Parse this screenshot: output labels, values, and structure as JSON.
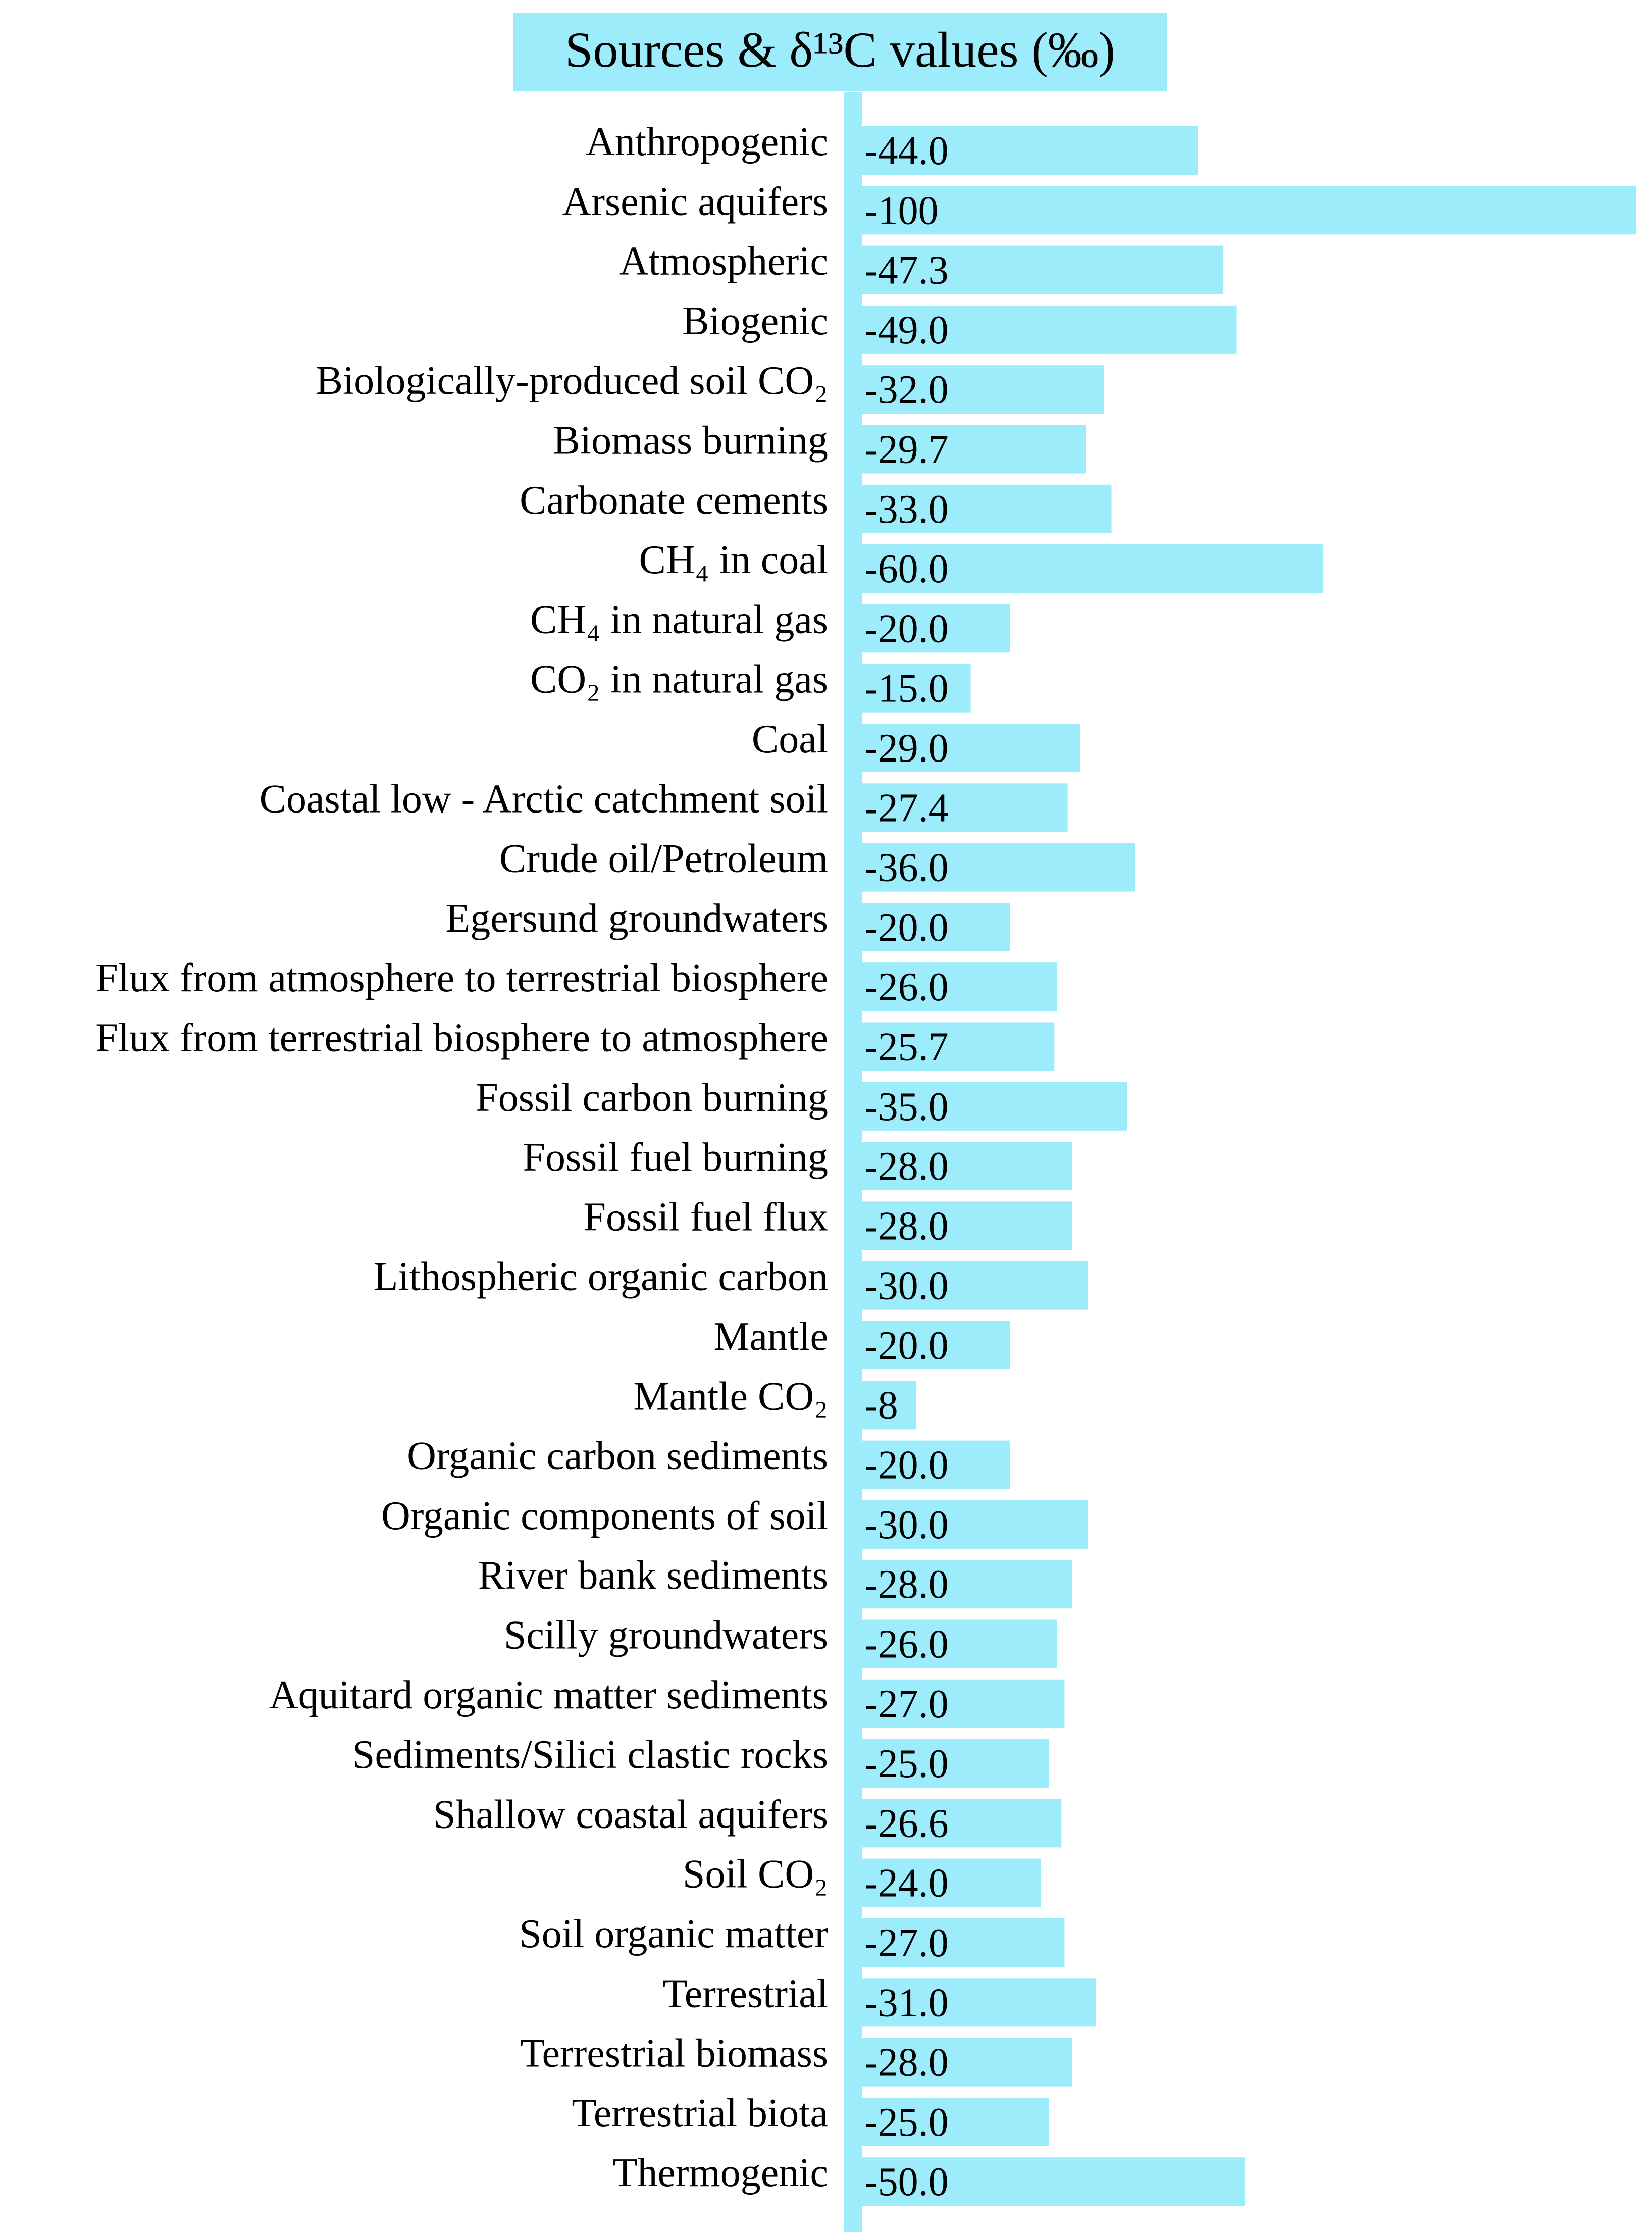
{
  "chart_data": {
    "type": "bar",
    "orientation": "horizontal",
    "title": "Sources & δ¹³C values (‰)",
    "bar_color": "#9cecfc",
    "categories": [
      "Anthropogenic",
      "Arsenic aquifers",
      "Atmospheric",
      "Biogenic",
      "Biologically-produced soil CO₂",
      "Biomass burning",
      "Carbonate cements",
      "CH₄ in coal",
      "CH₄ in natural gas",
      "CO₂ in natural gas",
      "Coal",
      "Coastal low - Arctic catchment soil",
      "Crude oil/Petroleum",
      "Egersund groundwaters",
      "Flux from atmosphere to terrestrial biosphere",
      "Flux from terrestrial biosphere to atmosphere",
      "Fossil carbon burning",
      "Fossil fuel burning",
      "Fossil fuel flux",
      "Lithospheric organic carbon",
      "Mantle",
      "Mantle CO₂",
      "Organic carbon sediments",
      "Organic components of soil",
      "River bank sediments",
      "Scilly groundwaters",
      "Aquitard organic matter sediments",
      "Sediments/Silici clastic rocks",
      "Shallow coastal aquifers",
      "Soil CO₂",
      "Soil organic matter",
      "Terrestrial",
      "Terrestrial biomass",
      "Terrestrial biota",
      "Thermogenic"
    ],
    "values": [
      -44.0,
      -100,
      -47.3,
      -49.0,
      -32.0,
      -29.7,
      -33.0,
      -60.0,
      -20.0,
      -15.0,
      -29.0,
      -27.4,
      -36.0,
      -20.0,
      -26.0,
      -25.7,
      -35.0,
      -28.0,
      -28.0,
      -30.0,
      -20.0,
      -8,
      -20.0,
      -30.0,
      -28.0,
      -26.0,
      -27.0,
      -25.0,
      -26.6,
      -24.0,
      -27.0,
      -31.0,
      -28.0,
      -25.0,
      -50.0
    ],
    "value_labels": [
      "-44.0",
      "-100",
      "-47.3",
      "-49.0",
      "-32.0",
      "-29.7",
      "-33.0",
      "-60.0",
      "-20.0",
      "-15.0",
      "-29.0",
      "-27.4",
      "-36.0",
      "-20.0",
      "-26.0",
      "-25.7",
      "-35.0",
      "-28.0",
      "-28.0",
      "-30.0",
      "-20.0",
      "-8",
      "-20.0",
      "-30.0",
      "-28.0",
      "-26.0",
      "-27.0",
      "-25.0",
      "-26.6",
      "-24.0",
      "-27.0",
      "-31.0",
      "-28.0",
      "-25.0",
      "-50.0"
    ],
    "xlim": [
      0,
      -100
    ],
    "grid": false,
    "legend": "none"
  }
}
